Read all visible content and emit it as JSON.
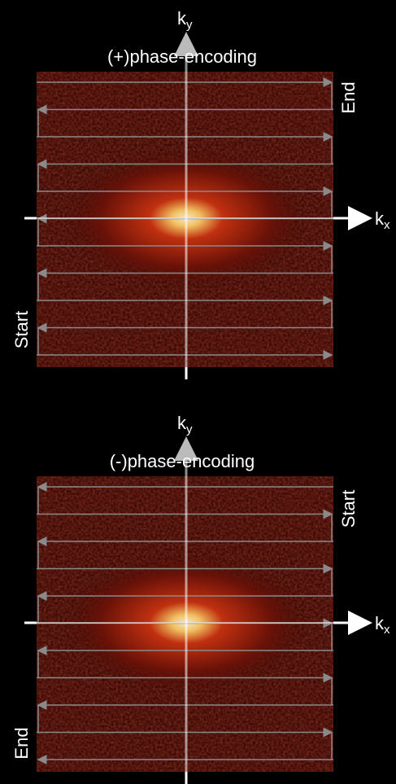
{
  "panels": [
    {
      "title": "(+)phase-encoding",
      "ky": {
        "base": "k",
        "sub": "y"
      },
      "kx": {
        "base": "k",
        "sub": "x"
      },
      "right_label": "End",
      "left_label": "Start"
    },
    {
      "title": "(-)phase-encoding",
      "ky": {
        "base": "k",
        "sub": "y"
      },
      "kx": {
        "base": "k",
        "sub": "x"
      },
      "right_label": "Start",
      "left_label": "End"
    }
  ]
}
